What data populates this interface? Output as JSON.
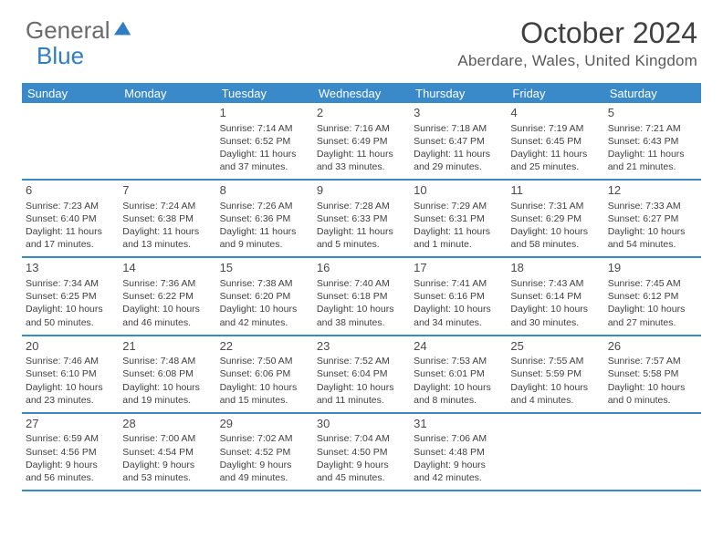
{
  "logo": {
    "part1": "General",
    "part2": "Blue"
  },
  "title": "October 2024",
  "location": "Aberdare, Wales, United Kingdom",
  "header_bg": "#3a89c9",
  "day_names": [
    "Sunday",
    "Monday",
    "Tuesday",
    "Wednesday",
    "Thursday",
    "Friday",
    "Saturday"
  ],
  "weeks": [
    [
      {
        "n": "",
        "sr": "",
        "ss": "",
        "dl1": "",
        "dl2": ""
      },
      {
        "n": "",
        "sr": "",
        "ss": "",
        "dl1": "",
        "dl2": ""
      },
      {
        "n": "1",
        "sr": "Sunrise: 7:14 AM",
        "ss": "Sunset: 6:52 PM",
        "dl1": "Daylight: 11 hours",
        "dl2": "and 37 minutes."
      },
      {
        "n": "2",
        "sr": "Sunrise: 7:16 AM",
        "ss": "Sunset: 6:49 PM",
        "dl1": "Daylight: 11 hours",
        "dl2": "and 33 minutes."
      },
      {
        "n": "3",
        "sr": "Sunrise: 7:18 AM",
        "ss": "Sunset: 6:47 PM",
        "dl1": "Daylight: 11 hours",
        "dl2": "and 29 minutes."
      },
      {
        "n": "4",
        "sr": "Sunrise: 7:19 AM",
        "ss": "Sunset: 6:45 PM",
        "dl1": "Daylight: 11 hours",
        "dl2": "and 25 minutes."
      },
      {
        "n": "5",
        "sr": "Sunrise: 7:21 AM",
        "ss": "Sunset: 6:43 PM",
        "dl1": "Daylight: 11 hours",
        "dl2": "and 21 minutes."
      }
    ],
    [
      {
        "n": "6",
        "sr": "Sunrise: 7:23 AM",
        "ss": "Sunset: 6:40 PM",
        "dl1": "Daylight: 11 hours",
        "dl2": "and 17 minutes."
      },
      {
        "n": "7",
        "sr": "Sunrise: 7:24 AM",
        "ss": "Sunset: 6:38 PM",
        "dl1": "Daylight: 11 hours",
        "dl2": "and 13 minutes."
      },
      {
        "n": "8",
        "sr": "Sunrise: 7:26 AM",
        "ss": "Sunset: 6:36 PM",
        "dl1": "Daylight: 11 hours",
        "dl2": "and 9 minutes."
      },
      {
        "n": "9",
        "sr": "Sunrise: 7:28 AM",
        "ss": "Sunset: 6:33 PM",
        "dl1": "Daylight: 11 hours",
        "dl2": "and 5 minutes."
      },
      {
        "n": "10",
        "sr": "Sunrise: 7:29 AM",
        "ss": "Sunset: 6:31 PM",
        "dl1": "Daylight: 11 hours",
        "dl2": "and 1 minute."
      },
      {
        "n": "11",
        "sr": "Sunrise: 7:31 AM",
        "ss": "Sunset: 6:29 PM",
        "dl1": "Daylight: 10 hours",
        "dl2": "and 58 minutes."
      },
      {
        "n": "12",
        "sr": "Sunrise: 7:33 AM",
        "ss": "Sunset: 6:27 PM",
        "dl1": "Daylight: 10 hours",
        "dl2": "and 54 minutes."
      }
    ],
    [
      {
        "n": "13",
        "sr": "Sunrise: 7:34 AM",
        "ss": "Sunset: 6:25 PM",
        "dl1": "Daylight: 10 hours",
        "dl2": "and 50 minutes."
      },
      {
        "n": "14",
        "sr": "Sunrise: 7:36 AM",
        "ss": "Sunset: 6:22 PM",
        "dl1": "Daylight: 10 hours",
        "dl2": "and 46 minutes."
      },
      {
        "n": "15",
        "sr": "Sunrise: 7:38 AM",
        "ss": "Sunset: 6:20 PM",
        "dl1": "Daylight: 10 hours",
        "dl2": "and 42 minutes."
      },
      {
        "n": "16",
        "sr": "Sunrise: 7:40 AM",
        "ss": "Sunset: 6:18 PM",
        "dl1": "Daylight: 10 hours",
        "dl2": "and 38 minutes."
      },
      {
        "n": "17",
        "sr": "Sunrise: 7:41 AM",
        "ss": "Sunset: 6:16 PM",
        "dl1": "Daylight: 10 hours",
        "dl2": "and 34 minutes."
      },
      {
        "n": "18",
        "sr": "Sunrise: 7:43 AM",
        "ss": "Sunset: 6:14 PM",
        "dl1": "Daylight: 10 hours",
        "dl2": "and 30 minutes."
      },
      {
        "n": "19",
        "sr": "Sunrise: 7:45 AM",
        "ss": "Sunset: 6:12 PM",
        "dl1": "Daylight: 10 hours",
        "dl2": "and 27 minutes."
      }
    ],
    [
      {
        "n": "20",
        "sr": "Sunrise: 7:46 AM",
        "ss": "Sunset: 6:10 PM",
        "dl1": "Daylight: 10 hours",
        "dl2": "and 23 minutes."
      },
      {
        "n": "21",
        "sr": "Sunrise: 7:48 AM",
        "ss": "Sunset: 6:08 PM",
        "dl1": "Daylight: 10 hours",
        "dl2": "and 19 minutes."
      },
      {
        "n": "22",
        "sr": "Sunrise: 7:50 AM",
        "ss": "Sunset: 6:06 PM",
        "dl1": "Daylight: 10 hours",
        "dl2": "and 15 minutes."
      },
      {
        "n": "23",
        "sr": "Sunrise: 7:52 AM",
        "ss": "Sunset: 6:04 PM",
        "dl1": "Daylight: 10 hours",
        "dl2": "and 11 minutes."
      },
      {
        "n": "24",
        "sr": "Sunrise: 7:53 AM",
        "ss": "Sunset: 6:01 PM",
        "dl1": "Daylight: 10 hours",
        "dl2": "and 8 minutes."
      },
      {
        "n": "25",
        "sr": "Sunrise: 7:55 AM",
        "ss": "Sunset: 5:59 PM",
        "dl1": "Daylight: 10 hours",
        "dl2": "and 4 minutes."
      },
      {
        "n": "26",
        "sr": "Sunrise: 7:57 AM",
        "ss": "Sunset: 5:58 PM",
        "dl1": "Daylight: 10 hours",
        "dl2": "and 0 minutes."
      }
    ],
    [
      {
        "n": "27",
        "sr": "Sunrise: 6:59 AM",
        "ss": "Sunset: 4:56 PM",
        "dl1": "Daylight: 9 hours",
        "dl2": "and 56 minutes."
      },
      {
        "n": "28",
        "sr": "Sunrise: 7:00 AM",
        "ss": "Sunset: 4:54 PM",
        "dl1": "Daylight: 9 hours",
        "dl2": "and 53 minutes."
      },
      {
        "n": "29",
        "sr": "Sunrise: 7:02 AM",
        "ss": "Sunset: 4:52 PM",
        "dl1": "Daylight: 9 hours",
        "dl2": "and 49 minutes."
      },
      {
        "n": "30",
        "sr": "Sunrise: 7:04 AM",
        "ss": "Sunset: 4:50 PM",
        "dl1": "Daylight: 9 hours",
        "dl2": "and 45 minutes."
      },
      {
        "n": "31",
        "sr": "Sunrise: 7:06 AM",
        "ss": "Sunset: 4:48 PM",
        "dl1": "Daylight: 9 hours",
        "dl2": "and 42 minutes."
      },
      {
        "n": "",
        "sr": "",
        "ss": "",
        "dl1": "",
        "dl2": ""
      },
      {
        "n": "",
        "sr": "",
        "ss": "",
        "dl1": "",
        "dl2": ""
      }
    ]
  ]
}
